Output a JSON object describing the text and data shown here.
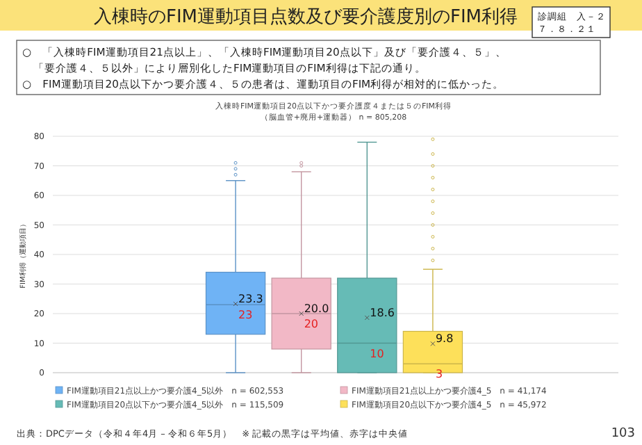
{
  "chart_data": {
    "type": "box",
    "title": "入棟時FIM運動項目20点以下かつ要介護度４または５のFIM利得",
    "subtitle": "（脳血管+廃用+運動器） n = 805,208",
    "ylabel": "FIM利得（運動項目）",
    "categories": [
      null
    ],
    "ylim": [
      0,
      80
    ],
    "yticks": [
      0,
      10,
      20,
      30,
      40,
      50,
      60,
      70,
      80
    ],
    "grid": "y",
    "legend": "bottom",
    "series": [
      {
        "name": "FIM運動項目21点以上かつ要介護4_5以外\nn = 602,553",
        "color": "#6fb3f5",
        "boxes": [
          {
            "low": 0,
            "q1": 13,
            "median": 23,
            "q3": 34,
            "high": 65,
            "mean": 23.3,
            "outliers": [
              67,
              69,
              71
            ]
          }
        ]
      },
      {
        "name": "FIM運動項目21点以上かつ要介護4_5\nn = 41,174",
        "color": "#f2b8c6",
        "boxes": [
          {
            "low": 0,
            "q1": 8,
            "median": 20,
            "q3": 32,
            "high": 68,
            "mean": 20.0,
            "outliers": [
              70,
              71
            ]
          }
        ]
      },
      {
        "name": "FIM運動項目20点以下かつ要介護4_5以外\nn = 115,509",
        "color": "#66bbb6",
        "boxes": [
          {
            "low": 0,
            "q1": 0,
            "median": 10,
            "q3": 32,
            "high": 78,
            "mean": 18.6
          }
        ]
      },
      {
        "name": "FIM運動項目20点以下かつ要介護4_5\nn = 45,972",
        "color": "#fde05a",
        "boxes": [
          {
            "low": 0,
            "q1": 0,
            "median": 3,
            "q3": 14,
            "high": 35,
            "mean": 9.8,
            "outliers": [
              38,
              42,
              46,
              50,
              54,
              58,
              62,
              66,
              70,
              74,
              79
            ]
          }
        ]
      }
    ],
    "annotations": [
      "入棟時のFIM運動項目点数及び要介護度別のFIM利得",
      "診調組　入－２",
      "７．８．２１",
      "○　「入棟時FIM運動項目21点以上」、「入棟時FIM運動項目20点以下」及び「要介護４、５」、「要介護４、５以外」により層別化したFIM運動項目のFIM利得は下記の通り。",
      "○　FIM運動項目20点以下かつ要介護４、５の患者は、運動項目のFIM利得が相対的に低かった。",
      "出典：DPCデータ（令和４年4月 – 令和６年5月）　※ 記載の黒字は平均値、赤字は中央値",
      "103",
      "23.3",
      "23",
      "20.0",
      "20",
      "18.6",
      "10",
      "9.8",
      "3"
    ]
  }
}
